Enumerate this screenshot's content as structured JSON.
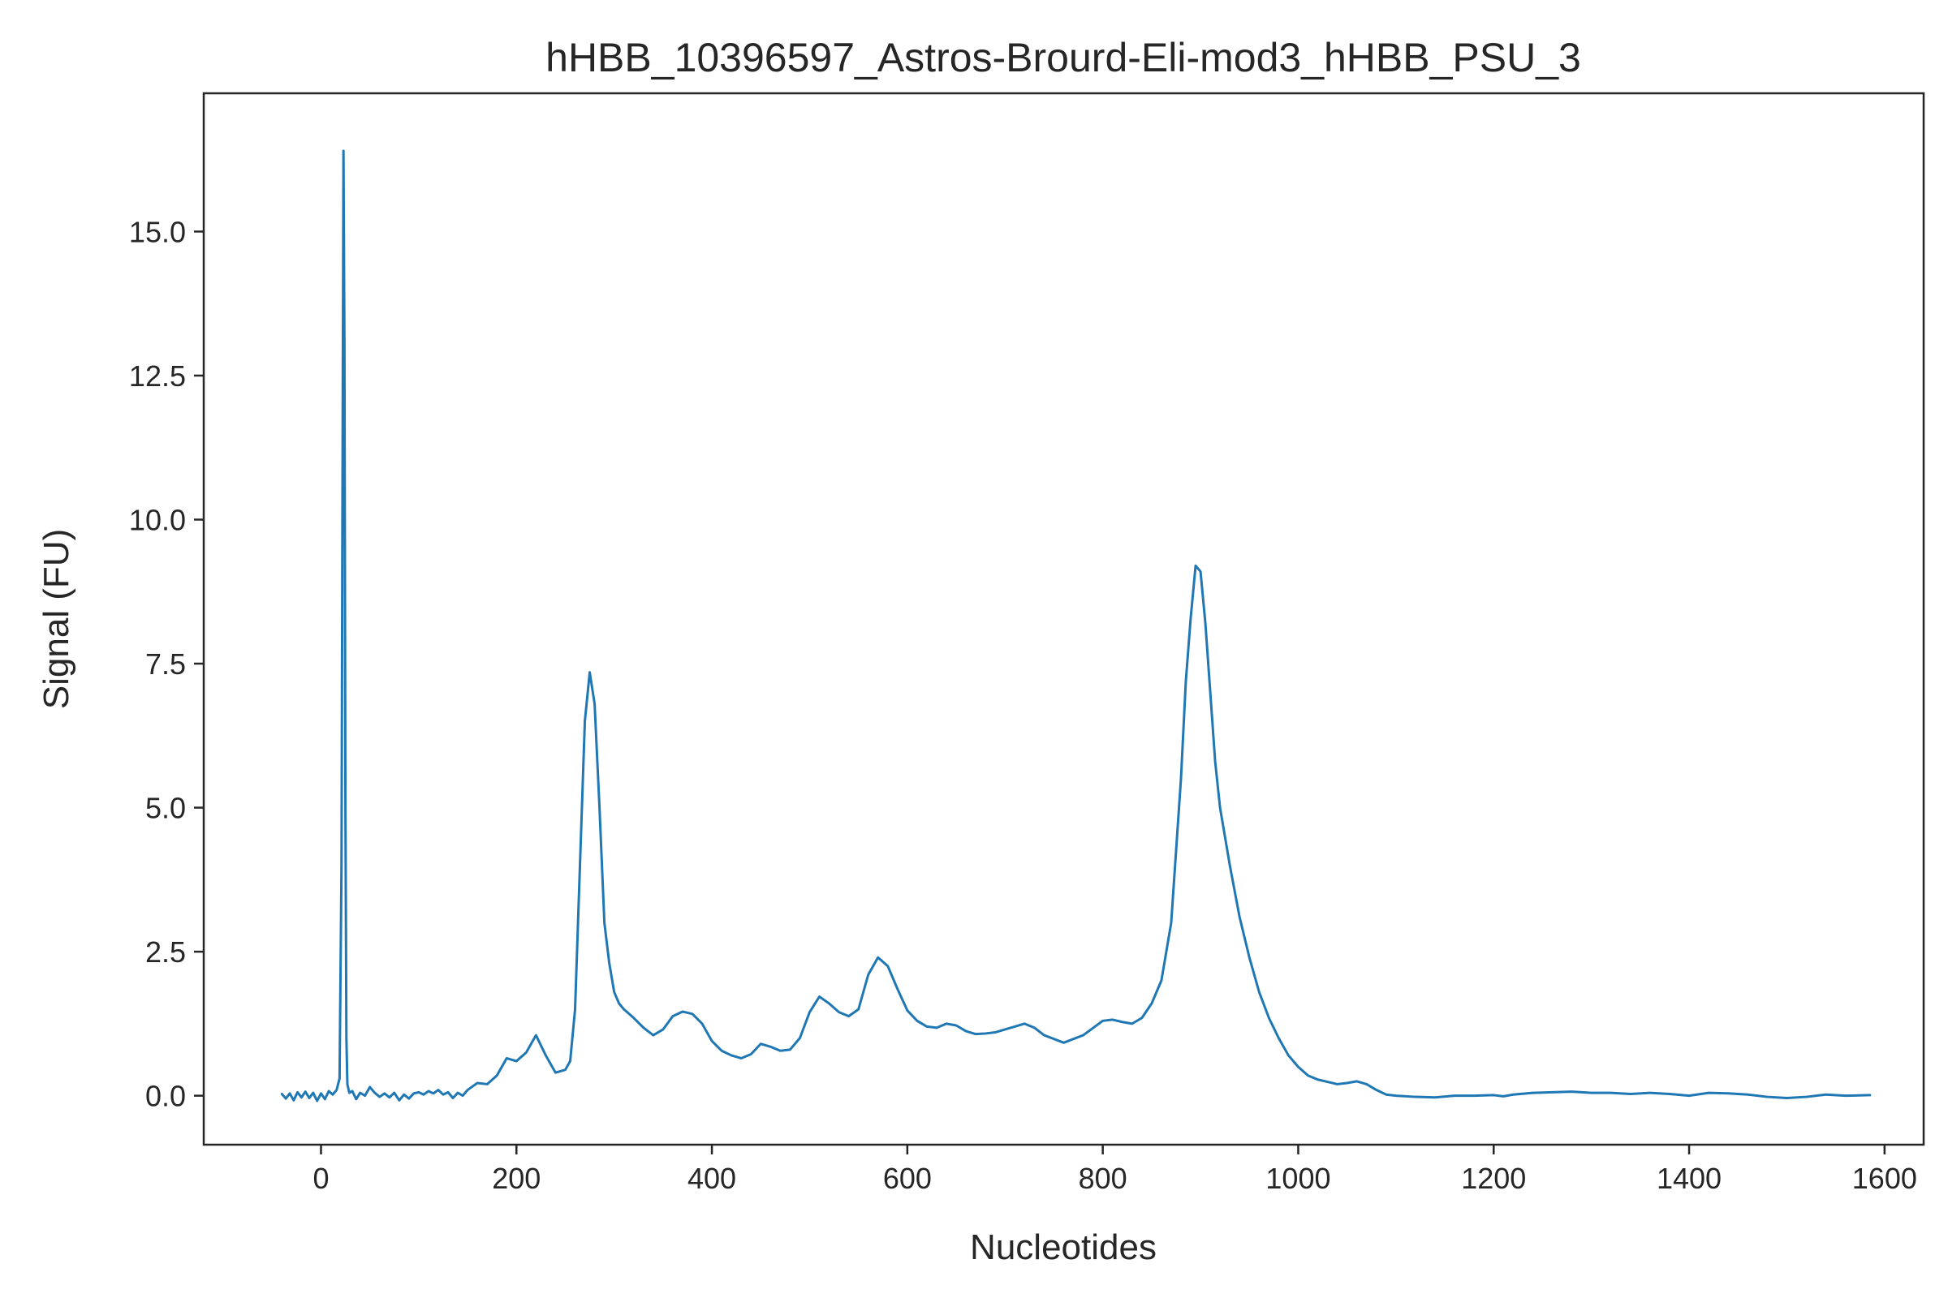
{
  "chart_data": {
    "type": "line",
    "title": "hHBB_10396597_Astros-Brourd-Eli-mod3_hHBB_PSU_3",
    "xlabel": "Nucleotides",
    "ylabel": "Signal (FU)",
    "xlim": [
      -120,
      1640
    ],
    "ylim": [
      -0.85,
      17.4
    ],
    "xticks": [
      0,
      200,
      400,
      600,
      800,
      1000,
      1200,
      1400,
      1600
    ],
    "yticks": [
      0.0,
      2.5,
      5.0,
      7.5,
      10.0,
      12.5,
      15.0
    ],
    "xtick_labels": [
      "0",
      "200",
      "400",
      "600",
      "800",
      "1000",
      "1200",
      "1400",
      "1600"
    ],
    "ytick_labels": [
      "0.0",
      "2.5",
      "5.0",
      "7.5",
      "10.0",
      "12.5",
      "15.0"
    ],
    "grid": false,
    "series": [
      {
        "color": "#1f77b4",
        "x": [
          -40,
          -36,
          -32,
          -28,
          -24,
          -20,
          -16,
          -12,
          -8,
          -4,
          0,
          4,
          8,
          12,
          16,
          19,
          21,
          22,
          23,
          24,
          25,
          26,
          27,
          29,
          32,
          36,
          40,
          45,
          50,
          55,
          60,
          65,
          70,
          75,
          80,
          85,
          90,
          95,
          100,
          105,
          110,
          115,
          120,
          125,
          130,
          135,
          140,
          145,
          150,
          160,
          170,
          180,
          190,
          200,
          210,
          220,
          230,
          240,
          250,
          255,
          260,
          265,
          270,
          275,
          280,
          285,
          290,
          295,
          300,
          305,
          310,
          320,
          330,
          340,
          350,
          360,
          370,
          380,
          390,
          400,
          410,
          420,
          430,
          440,
          450,
          460,
          470,
          480,
          490,
          500,
          510,
          520,
          530,
          540,
          550,
          560,
          570,
          580,
          590,
          600,
          610,
          620,
          630,
          640,
          650,
          660,
          670,
          680,
          690,
          700,
          710,
          720,
          730,
          740,
          760,
          780,
          800,
          810,
          820,
          830,
          840,
          850,
          860,
          870,
          880,
          885,
          890,
          895,
          900,
          905,
          910,
          915,
          920,
          930,
          940,
          950,
          960,
          970,
          980,
          990,
          1000,
          1010,
          1020,
          1030,
          1040,
          1050,
          1060,
          1070,
          1080,
          1090,
          1100,
          1120,
          1140,
          1160,
          1180,
          1200,
          1210,
          1220,
          1240,
          1260,
          1280,
          1300,
          1320,
          1340,
          1360,
          1380,
          1400,
          1420,
          1440,
          1460,
          1480,
          1500,
          1520,
          1540,
          1560,
          1585
        ],
        "y": [
          0.03,
          -0.05,
          0.04,
          -0.08,
          0.06,
          -0.03,
          0.07,
          -0.04,
          0.05,
          -0.09,
          0.04,
          -0.06,
          0.08,
          0.02,
          0.1,
          0.3,
          4.0,
          10.5,
          16.4,
          13.0,
          5.0,
          1.0,
          0.2,
          0.05,
          0.08,
          -0.06,
          0.05,
          0.0,
          0.15,
          0.05,
          -0.02,
          0.04,
          -0.03,
          0.05,
          -0.08,
          0.02,
          -0.05,
          0.04,
          0.06,
          0.02,
          0.08,
          0.04,
          0.1,
          0.02,
          0.06,
          -0.04,
          0.05,
          0.0,
          0.1,
          0.22,
          0.2,
          0.35,
          0.65,
          0.6,
          0.75,
          1.05,
          0.7,
          0.4,
          0.45,
          0.6,
          1.5,
          4.0,
          6.5,
          7.35,
          6.8,
          5.0,
          3.0,
          2.3,
          1.8,
          1.6,
          1.5,
          1.35,
          1.18,
          1.05,
          1.15,
          1.38,
          1.46,
          1.42,
          1.25,
          0.95,
          0.78,
          0.7,
          0.65,
          0.72,
          0.9,
          0.85,
          0.78,
          0.8,
          1.0,
          1.45,
          1.72,
          1.6,
          1.45,
          1.38,
          1.5,
          2.1,
          2.4,
          2.25,
          1.85,
          1.48,
          1.3,
          1.2,
          1.18,
          1.25,
          1.22,
          1.12,
          1.07,
          1.08,
          1.1,
          1.15,
          1.2,
          1.25,
          1.18,
          1.05,
          0.92,
          1.05,
          1.3,
          1.32,
          1.28,
          1.25,
          1.35,
          1.6,
          2.0,
          3.0,
          5.5,
          7.2,
          8.3,
          9.2,
          9.1,
          8.2,
          7.0,
          5.8,
          5.0,
          4.0,
          3.1,
          2.4,
          1.8,
          1.35,
          1.0,
          0.7,
          0.5,
          0.35,
          0.28,
          0.24,
          0.2,
          0.22,
          0.25,
          0.2,
          0.1,
          0.02,
          0.0,
          -0.02,
          -0.03,
          0.0,
          0.0,
          0.01,
          -0.01,
          0.02,
          0.05,
          0.06,
          0.07,
          0.05,
          0.05,
          0.03,
          0.05,
          0.03,
          0.0,
          0.05,
          0.04,
          0.02,
          -0.02,
          -0.04,
          -0.02,
          0.02,
          0.0,
          0.01
        ]
      }
    ]
  }
}
